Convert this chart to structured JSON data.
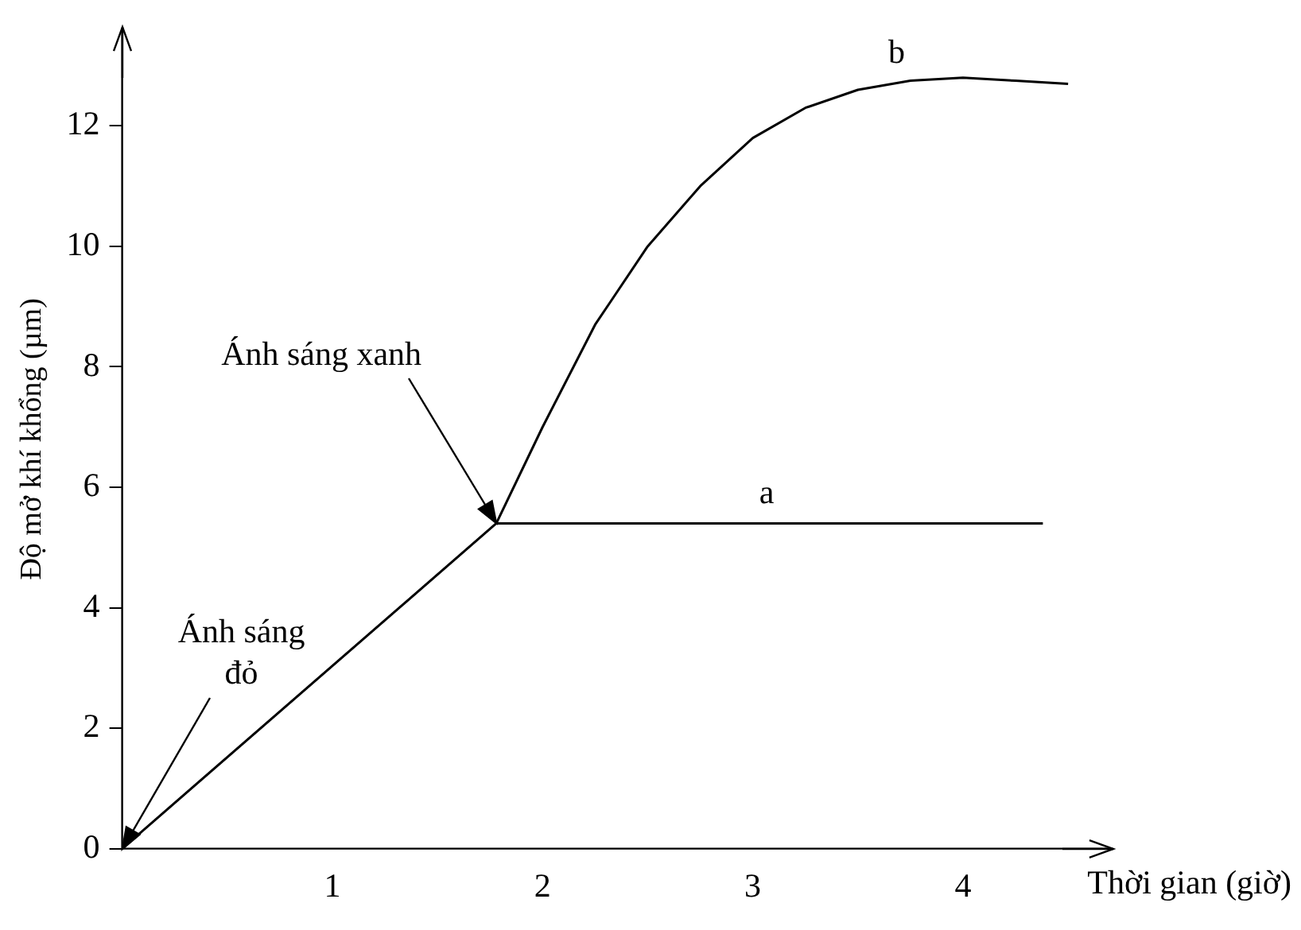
{
  "chart_data": {
    "type": "line",
    "xlabel": "Thời gian (giờ)",
    "ylabel": "Độ mở khí khổng (µm)",
    "xlim": [
      0,
      4.7
    ],
    "ylim": [
      0,
      13.6
    ],
    "xticks": [
      1,
      2,
      3,
      4
    ],
    "yticks": [
      0,
      2,
      4,
      6,
      8,
      10,
      12
    ],
    "grid": false,
    "legend": false,
    "marker": "none",
    "line_style": "solid",
    "series": [
      {
        "name": "a",
        "color": "#000000",
        "x": [
          0,
          1.78,
          4.38
        ],
        "values": [
          0,
          5.4,
          5.4
        ]
      },
      {
        "name": "b",
        "color": "#000000",
        "x": [
          1.78,
          2,
          2.25,
          2.5,
          2.75,
          3,
          3.25,
          3.5,
          3.75,
          4,
          4.25,
          4.5
        ],
        "values": [
          5.4,
          7.0,
          8.7,
          10.0,
          11.0,
          11.8,
          12.3,
          12.6,
          12.75,
          12.8,
          12.75,
          12.7
        ]
      }
    ],
    "annotations": [
      {
        "text": "Ánh sáng xanh",
        "x": 1.78,
        "y": 5.4
      },
      {
        "text": "Ánh sáng đỏ",
        "x": 0,
        "y": 0
      }
    ]
  }
}
